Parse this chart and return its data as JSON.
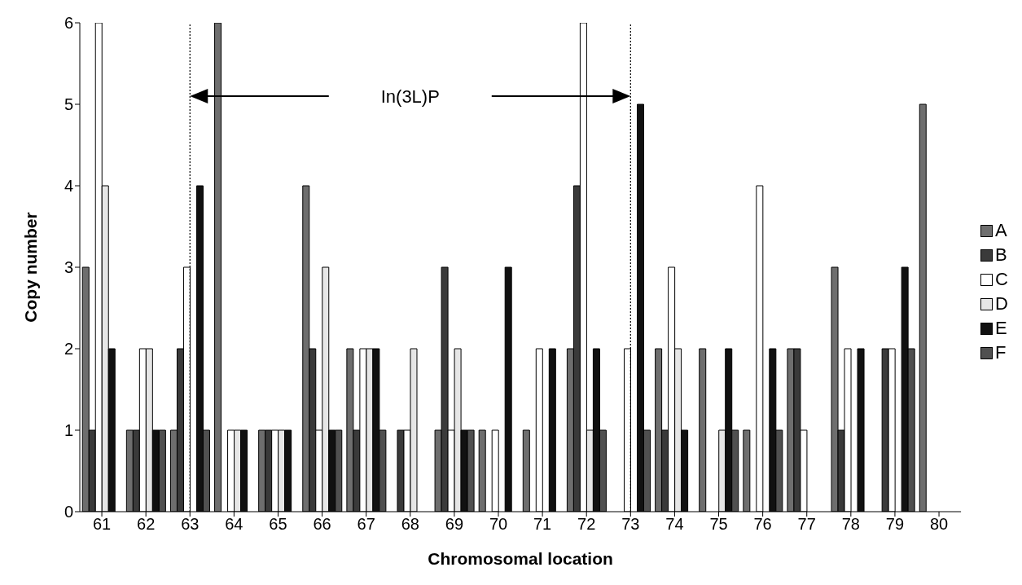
{
  "chart_data": {
    "type": "bar",
    "xlabel": "Chromosomal location",
    "ylabel": "Copy number",
    "categories": [
      "61",
      "62",
      "63",
      "64",
      "65",
      "66",
      "67",
      "68",
      "69",
      "70",
      "71",
      "72",
      "73",
      "74",
      "75",
      "76",
      "77",
      "78",
      "79",
      "80"
    ],
    "series": [
      {
        "name": "A",
        "color": "#6e6e6e",
        "values": [
          3,
          1,
          1,
          6,
          1,
          4,
          2,
          0,
          1,
          1,
          1,
          2,
          0,
          2,
          2,
          1,
          2,
          3,
          0,
          5
        ]
      },
      {
        "name": "B",
        "color": "#3a3a3a",
        "values": [
          1,
          1,
          2,
          0,
          1,
          2,
          1,
          1,
          3,
          0,
          0,
          4,
          0,
          1,
          0,
          0,
          2,
          1,
          2,
          0
        ]
      },
      {
        "name": "C",
        "color": "#ffffff",
        "values": [
          6,
          2,
          3,
          1,
          1,
          1,
          2,
          1,
          1,
          1,
          2,
          6,
          2,
          3,
          0,
          4,
          1,
          2,
          2,
          0
        ]
      },
      {
        "name": "D",
        "color": "#e6e6e6",
        "values": [
          4,
          2,
          0,
          1,
          1,
          3,
          2,
          2,
          2,
          0,
          0,
          1,
          0,
          2,
          1,
          0,
          0,
          0,
          0,
          0
        ]
      },
      {
        "name": "E",
        "color": "#111111",
        "values": [
          2,
          1,
          4,
          1,
          1,
          1,
          2,
          0,
          1,
          3,
          2,
          2,
          5,
          1,
          2,
          2,
          0,
          2,
          3,
          0
        ]
      },
      {
        "name": "F",
        "color": "#505050",
        "values": [
          0,
          1,
          1,
          0,
          0,
          1,
          1,
          0,
          1,
          0,
          0,
          1,
          1,
          0,
          1,
          1,
          0,
          0,
          2,
          0
        ]
      }
    ],
    "ylim": [
      0,
      6
    ],
    "yticks": [
      0,
      1,
      2,
      3,
      4,
      5,
      6
    ],
    "legend": "right",
    "ref_lines": [
      {
        "axis": "x",
        "value": "63",
        "line_style": "dotted",
        "color": "#000000"
      },
      {
        "axis": "x",
        "value": "73",
        "line_style": "dotted",
        "color": "#000000"
      }
    ],
    "annotations": [
      "In(3L)P"
    ]
  }
}
